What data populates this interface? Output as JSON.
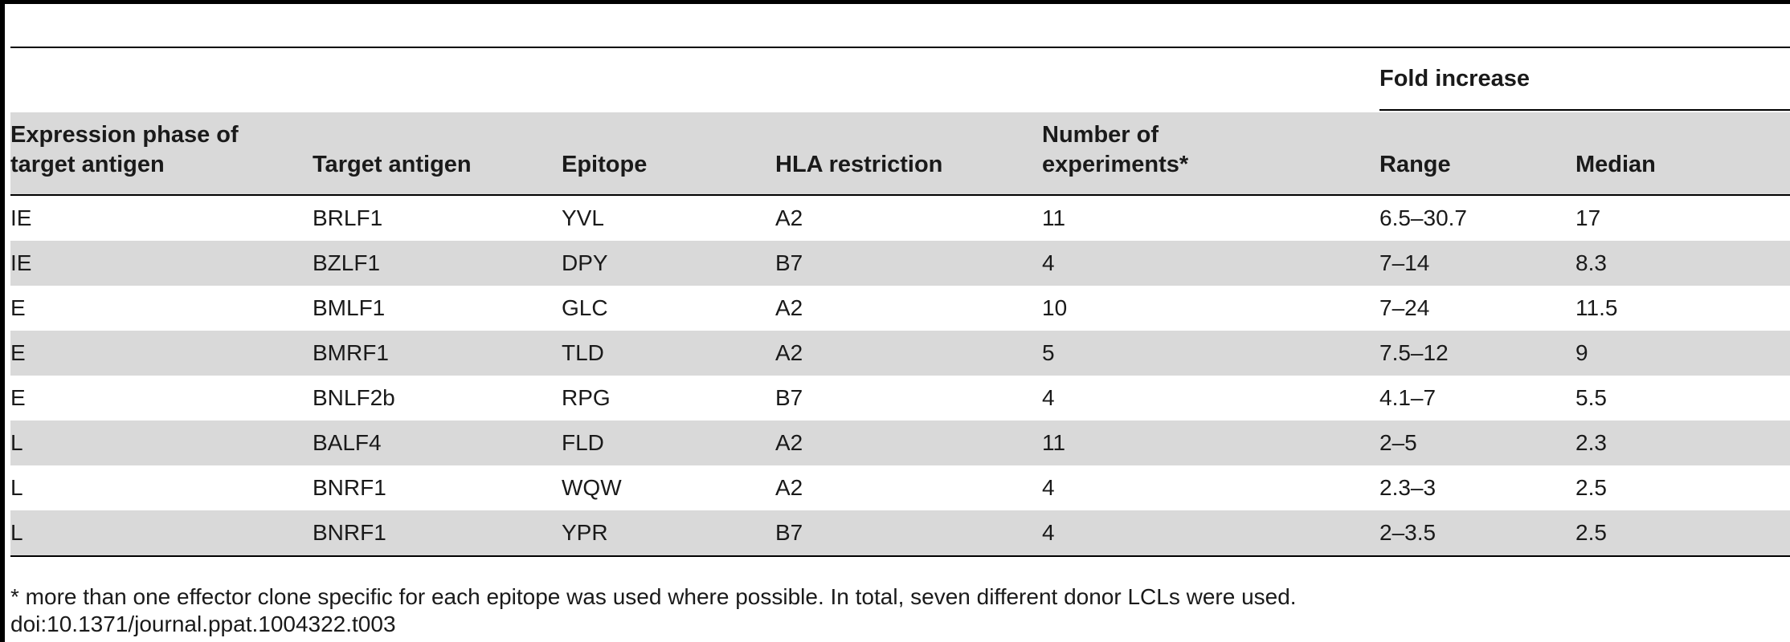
{
  "table": {
    "group_header": "Fold increase",
    "columns": [
      "Expression phase of target antigen",
      "Target antigen",
      "Epitope",
      "HLA restriction",
      "Number of experiments*",
      "Range",
      "Median"
    ],
    "column_lines": [
      [
        "Expression phase of",
        "target antigen"
      ],
      [
        "Target antigen"
      ],
      [
        "Epitope"
      ],
      [
        "HLA restriction"
      ],
      [
        "Number of",
        "experiments*"
      ],
      [
        "Range"
      ],
      [
        "Median"
      ]
    ],
    "rows": [
      [
        "IE",
        "BRLF1",
        "YVL",
        "A2",
        "11",
        "6.5–30.7",
        "17"
      ],
      [
        "IE",
        "BZLF1",
        "DPY",
        "B7",
        "4",
        "7–14",
        "8.3"
      ],
      [
        "E",
        "BMLF1",
        "GLC",
        "A2",
        "10",
        "7–24",
        "11.5"
      ],
      [
        "E",
        "BMRF1",
        "TLD",
        "A2",
        "5",
        "7.5–12",
        "9"
      ],
      [
        "E",
        "BNLF2b",
        "RPG",
        "B7",
        "4",
        "4.1–7",
        "5.5"
      ],
      [
        "L",
        "BALF4",
        "FLD",
        "A2",
        "11",
        "2–5",
        "2.3"
      ],
      [
        "L",
        "BNRF1",
        "WQW",
        "A2",
        "4",
        "2.3–3",
        "2.5"
      ],
      [
        "L",
        "BNRF1",
        "YPR",
        "B7",
        "4",
        "2–3.5",
        "2.5"
      ]
    ]
  },
  "footnote": "* more than one effector clone specific for each epitope was used where possible. In total, seven different donor LCLs were used.",
  "doi": "doi:10.1371/journal.ppat.1004322.t003"
}
